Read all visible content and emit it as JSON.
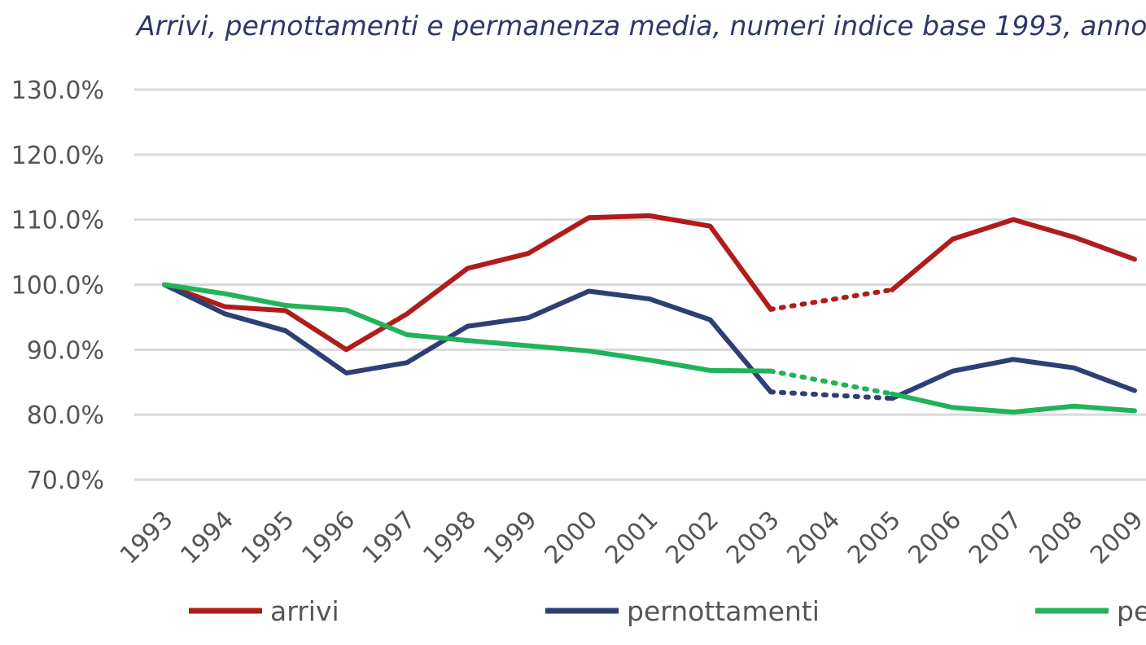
{
  "chart_data": {
    "type": "line",
    "title": "Arrivi, pernottamenti e permanenza media, numeri indice base 1993, anno",
    "categories": [
      "1993",
      "1994",
      "1995",
      "1996",
      "1997",
      "1998",
      "1999",
      "2000",
      "2001",
      "2002",
      "2003",
      "2004",
      "2005",
      "2006",
      "2007",
      "2008",
      "2009"
    ],
    "y_ticks": [
      "130.0%",
      "120.0%",
      "110.0%",
      "100.0%",
      "90.0%",
      "80.0%",
      "70.0%"
    ],
    "ylim": [
      70,
      130
    ],
    "grid": true,
    "legend_position": "bottom",
    "gap": {
      "from": "2003",
      "to": "2005",
      "style": "dotted"
    },
    "series": [
      {
        "name": "arrivi",
        "color": "#b01c1c",
        "values": [
          100.0,
          96.6,
          96.0,
          90.0,
          95.5,
          102.5,
          104.8,
          110.3,
          110.6,
          109.0,
          96.2,
          null,
          99.2,
          107.0,
          110.0,
          107.3,
          103.9
        ]
      },
      {
        "name": "pernottamenti",
        "color": "#2e3f72",
        "values": [
          100.0,
          95.5,
          92.9,
          86.4,
          88.0,
          93.6,
          94.9,
          99.0,
          97.8,
          94.6,
          83.5,
          null,
          82.5,
          86.7,
          88.5,
          87.2,
          83.7
        ]
      },
      {
        "name": "pe",
        "color": "#22b35a",
        "values": [
          100.0,
          98.6,
          96.8,
          96.1,
          92.3,
          91.4,
          90.6,
          89.8,
          88.4,
          86.8,
          86.7,
          null,
          83.2,
          81.1,
          80.4,
          81.3,
          80.6
        ]
      }
    ]
  }
}
